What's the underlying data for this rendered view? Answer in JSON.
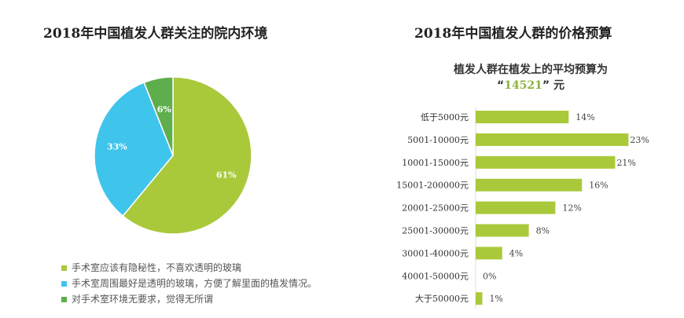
{
  "chart_data": [
    {
      "type": "pie",
      "title": "2018年中国植发人群关注的院内环境",
      "labels": [
        "手术室应该有隐秘性，不喜欢透明的玻璃",
        "手术室周围最好是透明的玻璃，方便了解里面的植发情况。",
        "对手术室环境无要求，觉得无所谓"
      ],
      "values": [
        61,
        33,
        6
      ],
      "value_labels": [
        "61%",
        "33%",
        "6%"
      ],
      "colors": [
        "#a9c93b",
        "#3fc4ec",
        "#5fae4d"
      ],
      "legend": "bottom-left"
    },
    {
      "type": "bar",
      "orientation": "horizontal",
      "title": "2018年中国植发人群的价格预算",
      "subtitle_line1": "植发人群在植发上的平均预算为",
      "subtitle_quote_open": "“",
      "subtitle_value": "14521",
      "subtitle_quote_close": "”",
      "subtitle_unit": " 元",
      "categories": [
        "低于5000元",
        "5001-10000元",
        "10001-15000元",
        "15001-200000元",
        "20001-25000元",
        "25001-30000元",
        "30001-40000元",
        "40001-50000元",
        "大于50000元"
      ],
      "values": [
        14,
        23,
        21,
        16,
        12,
        8,
        4,
        0,
        1
      ],
      "value_labels": [
        "14%",
        "23%",
        "21%",
        "16%",
        "12%",
        "8%",
        "4%",
        "0%",
        "1%"
      ],
      "color": "#a9c93b",
      "accent": "#8db33a",
      "xlim": [
        0,
        25
      ]
    }
  ]
}
